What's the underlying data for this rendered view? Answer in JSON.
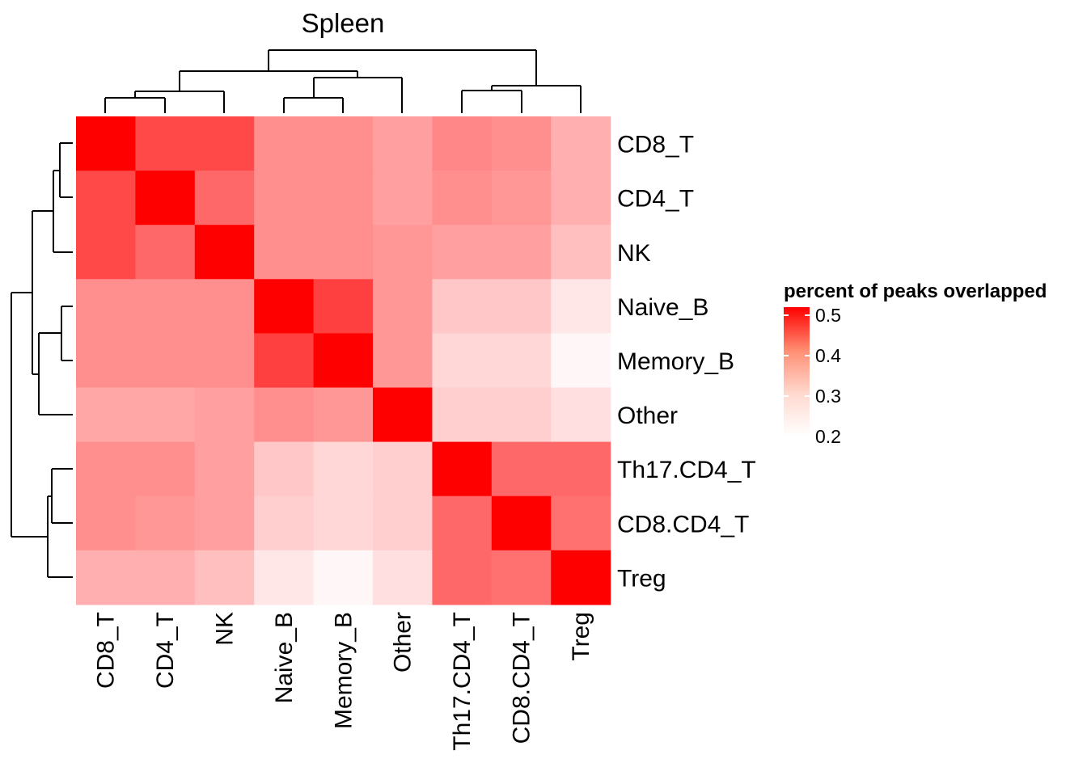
{
  "chart_data": {
    "type": "heatmap",
    "title": "Spleen",
    "row_labels": [
      "CD8_T",
      "CD4_T",
      "NK",
      "Naive_B",
      "Memory_B",
      "Other",
      "Th17.CD4_T",
      "CD8.CD4_T",
      "Treg"
    ],
    "col_labels": [
      "CD8_T",
      "CD4_T",
      "NK",
      "Naive_B",
      "Memory_B",
      "Other",
      "Th17.CD4_T",
      "CD8.CD4_T",
      "Treg"
    ],
    "values": [
      [
        0.52,
        0.43,
        0.43,
        0.34,
        0.34,
        0.32,
        0.35,
        0.34,
        0.3
      ],
      [
        0.43,
        0.52,
        0.39,
        0.34,
        0.34,
        0.32,
        0.34,
        0.33,
        0.3
      ],
      [
        0.43,
        0.39,
        0.52,
        0.34,
        0.34,
        0.33,
        0.32,
        0.32,
        0.28
      ],
      [
        0.34,
        0.34,
        0.34,
        0.52,
        0.44,
        0.33,
        0.27,
        0.27,
        0.23
      ],
      [
        0.34,
        0.34,
        0.34,
        0.44,
        0.52,
        0.33,
        0.25,
        0.25,
        0.21
      ],
      [
        0.31,
        0.31,
        0.32,
        0.34,
        0.33,
        0.52,
        0.26,
        0.26,
        0.24
      ],
      [
        0.34,
        0.34,
        0.32,
        0.27,
        0.25,
        0.26,
        0.52,
        0.39,
        0.39
      ],
      [
        0.34,
        0.33,
        0.32,
        0.26,
        0.25,
        0.26,
        0.39,
        0.52,
        0.38
      ],
      [
        0.3,
        0.3,
        0.28,
        0.23,
        0.21,
        0.24,
        0.39,
        0.38,
        0.52
      ]
    ],
    "legend": {
      "title": "percent of peaks overlapped",
      "ticks": [
        0.2,
        0.3,
        0.4,
        0.5
      ],
      "tick_labels": [
        "0.2",
        "0.3",
        "0.4",
        "0.5"
      ],
      "range": [
        0.2,
        0.52
      ],
      "placement": "right"
    },
    "colors": {
      "low": "#ffffff",
      "high": "#ff0000"
    },
    "row_dendrogram": {
      "placement": "left",
      "order": [
        "CD8_T",
        "CD4_T",
        "NK",
        "Naive_B",
        "Memory_B",
        "Other",
        "Th17.CD4_T",
        "CD8.CD4_T",
        "Treg"
      ]
    },
    "col_dendrogram": {
      "placement": "top",
      "order": [
        "CD8_T",
        "CD4_T",
        "NK",
        "Naive_B",
        "Memory_B",
        "Other",
        "Th17.CD4_T",
        "CD8.CD4_T",
        "Treg"
      ]
    }
  }
}
